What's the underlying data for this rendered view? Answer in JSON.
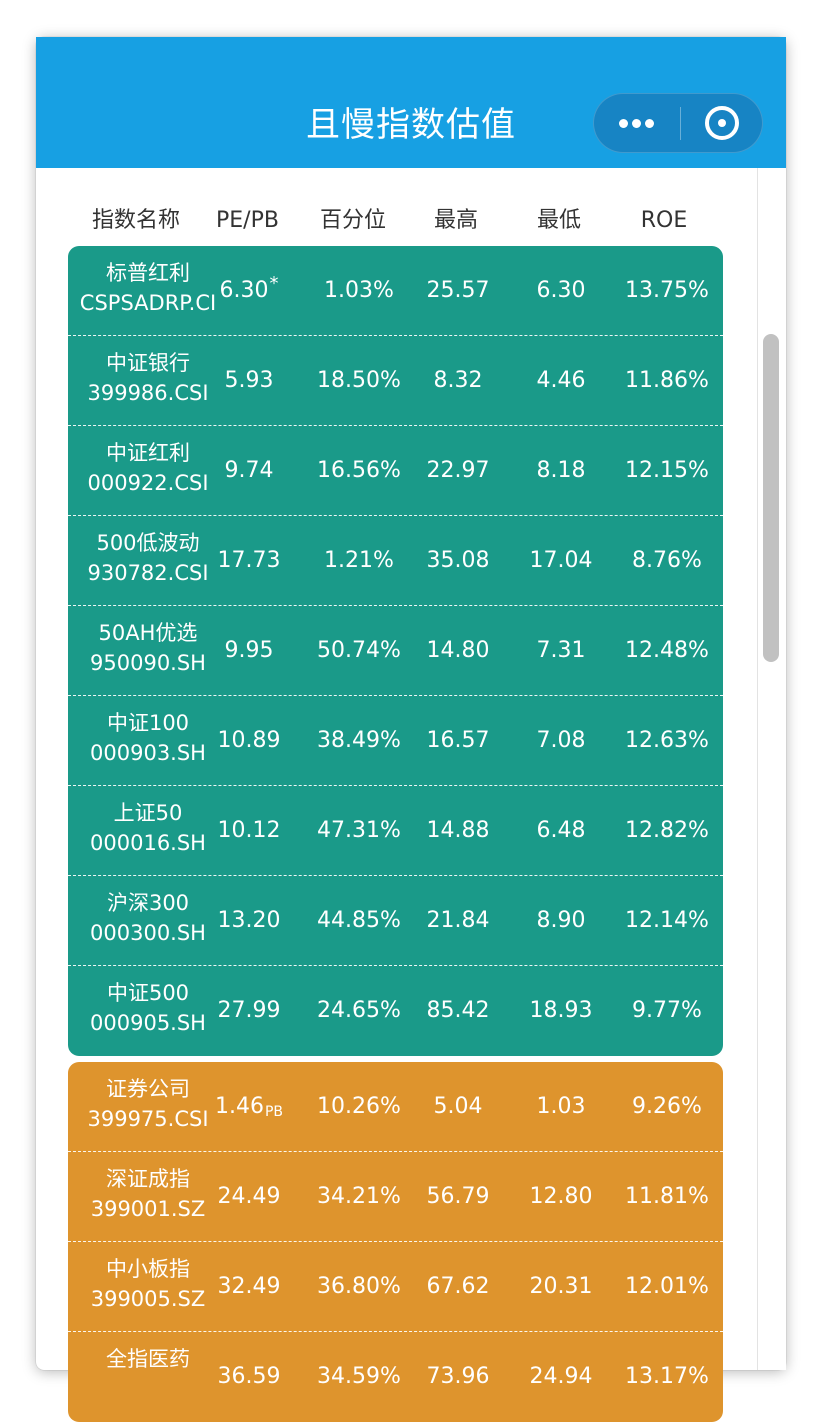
{
  "app": {
    "title": "且慢指数估值"
  },
  "capsule": {
    "more_icon": "more-dots-icon",
    "close_icon": "target-close-icon"
  },
  "columns": [
    "指数名称",
    "PE/PB",
    "百分位",
    "最高",
    "最低",
    "ROE"
  ],
  "colors": {
    "header": "#17a0e3",
    "green_group": "#1a9a89",
    "orange_group": "#de942d"
  },
  "groups": [
    {
      "color": "green",
      "rows": [
        {
          "name": "标普红利",
          "code": "CSPSADRP.CI",
          "pe": "6.30",
          "mark": "*",
          "sub": "",
          "pct": "1.03%",
          "high": "25.57",
          "low": "6.30",
          "roe": "13.75%"
        },
        {
          "name": "中证银行",
          "code": "399986.CSI",
          "pe": "5.93",
          "mark": "",
          "sub": "",
          "pct": "18.50%",
          "high": "8.32",
          "low": "4.46",
          "roe": "11.86%"
        },
        {
          "name": "中证红利",
          "code": "000922.CSI",
          "pe": "9.74",
          "mark": "",
          "sub": "",
          "pct": "16.56%",
          "high": "22.97",
          "low": "8.18",
          "roe": "12.15%"
        },
        {
          "name": "500低波动",
          "code": "930782.CSI",
          "pe": "17.73",
          "mark": "",
          "sub": "",
          "pct": "1.21%",
          "high": "35.08",
          "low": "17.04",
          "roe": "8.76%"
        },
        {
          "name": "50AH优选",
          "code": "950090.SH",
          "pe": "9.95",
          "mark": "",
          "sub": "",
          "pct": "50.74%",
          "high": "14.80",
          "low": "7.31",
          "roe": "12.48%"
        },
        {
          "name": "中证100",
          "code": "000903.SH",
          "pe": "10.89",
          "mark": "",
          "sub": "",
          "pct": "38.49%",
          "high": "16.57",
          "low": "7.08",
          "roe": "12.63%"
        },
        {
          "name": "上证50",
          "code": "000016.SH",
          "pe": "10.12",
          "mark": "",
          "sub": "",
          "pct": "47.31%",
          "high": "14.88",
          "low": "6.48",
          "roe": "12.82%"
        },
        {
          "name": "沪深300",
          "code": "000300.SH",
          "pe": "13.20",
          "mark": "",
          "sub": "",
          "pct": "44.85%",
          "high": "21.84",
          "low": "8.90",
          "roe": "12.14%"
        },
        {
          "name": "中证500",
          "code": "000905.SH",
          "pe": "27.99",
          "mark": "",
          "sub": "",
          "pct": "24.65%",
          "high": "85.42",
          "low": "18.93",
          "roe": "9.77%"
        }
      ]
    },
    {
      "color": "orange",
      "rows": [
        {
          "name": "证券公司",
          "code": "399975.CSI",
          "pe": "1.46",
          "mark": "",
          "sub": "PB",
          "pct": "10.26%",
          "high": "5.04",
          "low": "1.03",
          "roe": "9.26%"
        },
        {
          "name": "深证成指",
          "code": "399001.SZ",
          "pe": "24.49",
          "mark": "",
          "sub": "",
          "pct": "34.21%",
          "high": "56.79",
          "low": "12.80",
          "roe": "11.81%"
        },
        {
          "name": "中小板指",
          "code": "399005.SZ",
          "pe": "32.49",
          "mark": "",
          "sub": "",
          "pct": "36.80%",
          "high": "67.62",
          "low": "20.31",
          "roe": "12.01%"
        },
        {
          "name": "全指医药",
          "code": "",
          "pe": "36.59",
          "mark": "",
          "sub": "",
          "pct": "34.59%",
          "high": "73.96",
          "low": "24.94",
          "roe": "13.17%"
        }
      ]
    }
  ]
}
